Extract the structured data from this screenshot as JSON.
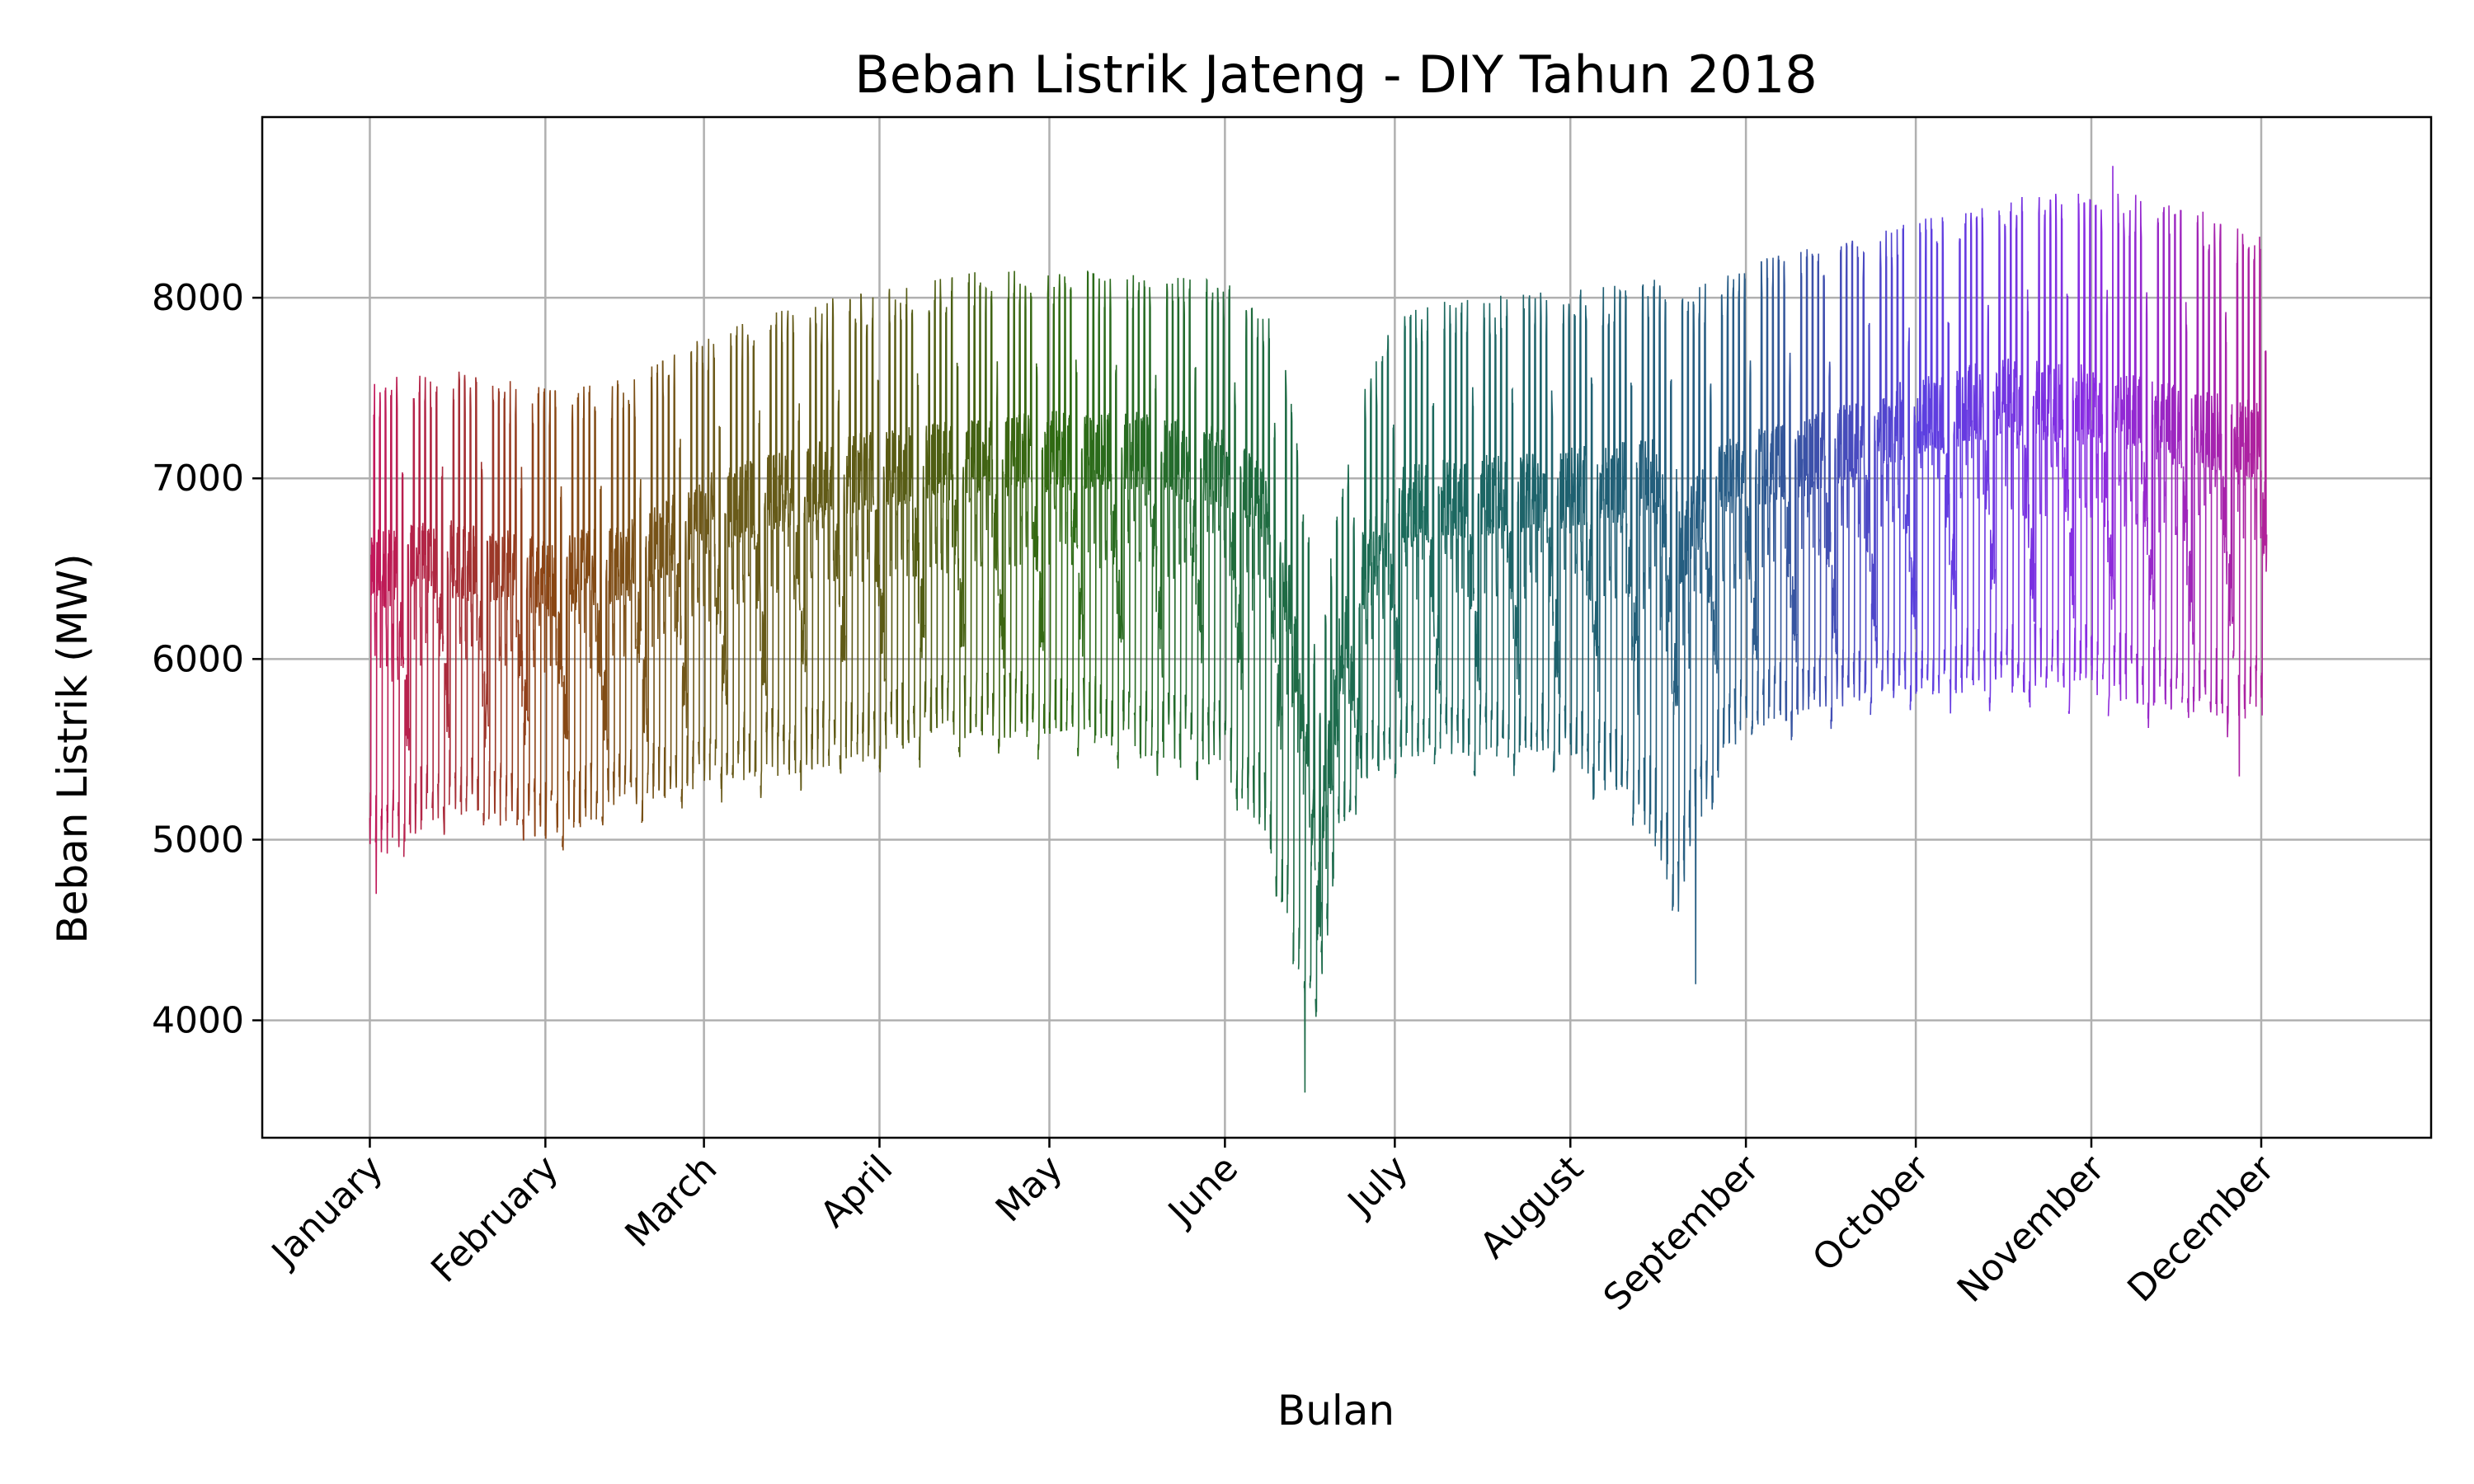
{
  "chart_data": {
    "type": "line",
    "title": "Beban Listrik Jateng - DIY Tahun 2018",
    "xlabel": "Bulan",
    "ylabel": "Beban Listrik (MW)",
    "xlim": [
      "2017-12-13",
      "2018-12-31"
    ],
    "ylim": [
      3350,
      9000
    ],
    "yticks": [
      4000,
      5000,
      6000,
      7000,
      8000
    ],
    "ytick_labels": [
      "4000",
      "5000",
      "6000",
      "7000",
      "8000"
    ],
    "grid": true,
    "legend": "none",
    "xticks": [
      {
        "date": "2018-01-01",
        "label": "January"
      },
      {
        "date": "2018-02-01",
        "label": "February"
      },
      {
        "date": "2018-03-01",
        "label": "March"
      },
      {
        "date": "2018-04-01",
        "label": "April"
      },
      {
        "date": "2018-05-01",
        "label": "May"
      },
      {
        "date": "2018-06-01",
        "label": "June"
      },
      {
        "date": "2018-07-01",
        "label": "July"
      },
      {
        "date": "2018-08-01",
        "label": "August"
      },
      {
        "date": "2018-09-01",
        "label": "September"
      },
      {
        "date": "2018-10-01",
        "label": "October"
      },
      {
        "date": "2018-11-01",
        "label": "November"
      },
      {
        "date": "2018-12-01",
        "label": "December"
      }
    ],
    "daily_envelope": {
      "description_units": "MW",
      "dates": [
        "2018-01-01",
        "2018-01-15",
        "2018-02-01",
        "2018-02-15",
        "2018-03-01",
        "2018-03-15",
        "2018-04-01",
        "2018-04-15",
        "2018-05-01",
        "2018-05-15",
        "2018-06-01",
        "2018-06-08",
        "2018-06-12",
        "2018-06-15",
        "2018-06-18",
        "2018-06-21",
        "2018-06-25",
        "2018-07-01",
        "2018-07-15",
        "2018-08-01",
        "2018-08-15",
        "2018-08-20",
        "2018-08-25",
        "2018-09-01",
        "2018-09-15",
        "2018-10-01",
        "2018-10-15",
        "2018-11-01",
        "2018-11-15",
        "2018-12-01"
      ],
      "peak_mw": [
        7550,
        7600,
        7500,
        7550,
        7800,
        7950,
        8050,
        8150,
        8150,
        8150,
        8100,
        7900,
        7500,
        6700,
        6400,
        7000,
        7500,
        7950,
        8000,
        8050,
        8100,
        8000,
        8100,
        8200,
        8300,
        8450,
        8550,
        8600,
        8550,
        8350
      ],
      "weekday_mean_mw": [
        6500,
        6550,
        6450,
        6550,
        6800,
        6950,
        7050,
        7100,
        7150,
        7150,
        7050,
        6850,
        6300,
        5500,
        5200,
        6000,
        6500,
        6850,
        6900,
        6950,
        7000,
        6600,
        6950,
        7050,
        7150,
        7350,
        7450,
        7400,
        7300,
        7200
      ],
      "min_mw": [
        4850,
        5150,
        5000,
        5150,
        5300,
        5350,
        5450,
        5550,
        5550,
        5450,
        5350,
        5000,
        4500,
        3900,
        4200,
        5000,
        5300,
        5450,
        5450,
        5450,
        5000,
        4600,
        5200,
        5600,
        5700,
        5800,
        5800,
        5800,
        5700,
        5650
      ]
    },
    "notable_points": [
      {
        "date": "2018-01-02",
        "value_mw": 4700
      },
      {
        "date": "2018-06-15",
        "value_mw": 3600
      },
      {
        "date": "2018-08-23",
        "value_mw": 4200
      },
      {
        "date": "2018-11-04",
        "value_mw": 8730
      },
      {
        "date": "2018-11-27",
        "value_mw": 5350
      }
    ],
    "colors": {
      "line_gradient": [
        "#c2185b",
        "#8b4513",
        "#6b5a1a",
        "#5a5a14",
        "#2e6b12",
        "#1f6b3a",
        "#1b6b5a",
        "#1e6070",
        "#2a5c8a",
        "#5b3fe0",
        "#8a2be2",
        "#b0209a"
      ]
    }
  }
}
